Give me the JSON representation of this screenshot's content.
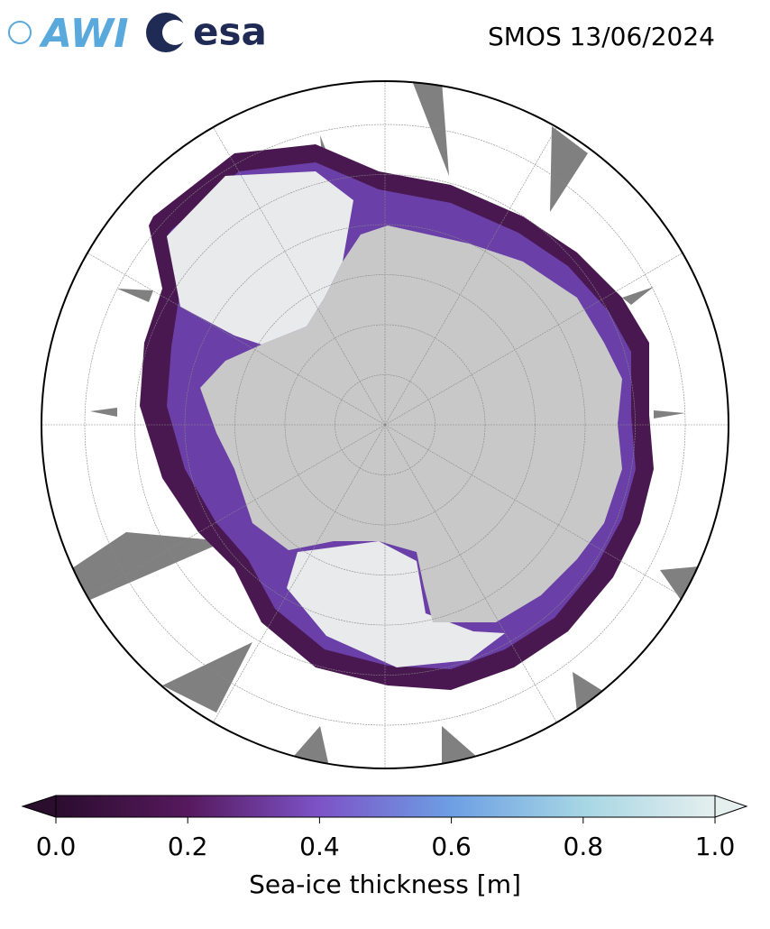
{
  "header": {
    "title": "SMOS 13/06/2024",
    "logos": [
      "AWI",
      "esa"
    ]
  },
  "colorbar": {
    "label": "Sea-ice thickness [m]",
    "lim": [
      0,
      1
    ],
    "ticks": [
      {
        "value": 0,
        "label": "0.0"
      },
      {
        "value": 0.2,
        "label": "0.2"
      },
      {
        "value": 0.4,
        "label": "0.4"
      },
      {
        "value": 0.6,
        "label": "0.6"
      },
      {
        "value": 0.8,
        "label": "0.8"
      },
      {
        "value": 1,
        "label": "1.0"
      }
    ],
    "colormap": [
      "#2b0d2e",
      "#56195e",
      "#7c53c7",
      "#6d9fe4",
      "#a6d6e4",
      "#e5efee"
    ]
  }
}
